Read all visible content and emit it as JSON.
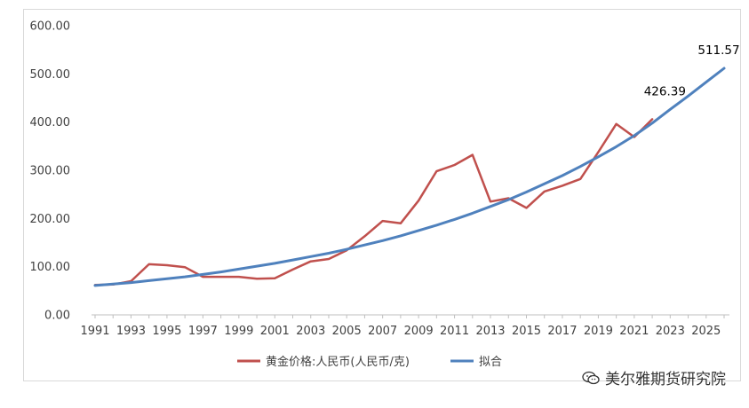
{
  "chart_data": {
    "type": "line",
    "x": [
      1991,
      1992,
      1993,
      1994,
      1995,
      1996,
      1997,
      1998,
      1999,
      2000,
      2001,
      2002,
      2003,
      2004,
      2005,
      2006,
      2007,
      2008,
      2009,
      2010,
      2011,
      2012,
      2013,
      2014,
      2015,
      2016,
      2017,
      2018,
      2019,
      2020,
      2021,
      2022,
      2023,
      2024,
      2025,
      2026
    ],
    "xticks": [
      "1991",
      "1993",
      "1995",
      "1997",
      "1999",
      "2001",
      "2003",
      "2005",
      "2007",
      "2009",
      "2011",
      "2013",
      "2015",
      "2017",
      "2019",
      "2021",
      "2023",
      "2025"
    ],
    "yticks": [
      "0.00",
      "100.00",
      "200.00",
      "300.00",
      "400.00",
      "500.00",
      "600.00"
    ],
    "ylim": [
      0,
      600
    ],
    "series": [
      {
        "name": "黄金价格:人民币(人民币/克)",
        "color": "#c0504d",
        "values": [
          62,
          63,
          70,
          105,
          103,
          99,
          79,
          79,
          79,
          75,
          76,
          94,
          111,
          116,
          134,
          163,
          195,
          190,
          237,
          298,
          311,
          332,
          235,
          242,
          222,
          256,
          268,
          282,
          338,
          396,
          369,
          406,
          null,
          null,
          null,
          null
        ]
      },
      {
        "name": "拟合",
        "color": "#4f81bd",
        "values": [
          61,
          64,
          67,
          71,
          75,
          79,
          84,
          89,
          95,
          101,
          107,
          114,
          121,
          128,
          136,
          145,
          154,
          164,
          175,
          186,
          198,
          211,
          225,
          239,
          255,
          272,
          289,
          308,
          328,
          349,
          372,
          398,
          426.39,
          454,
          483,
          511.57
        ]
      }
    ],
    "annotations": [
      {
        "text": "426.39",
        "series": 1,
        "index": 32
      },
      {
        "text": "511.57",
        "series": 1,
        "index": 35
      }
    ],
    "legend_position": "bottom",
    "grid": false
  },
  "watermark": {
    "text": "美尔雅期货研究院",
    "icon": "wechat-icon"
  }
}
